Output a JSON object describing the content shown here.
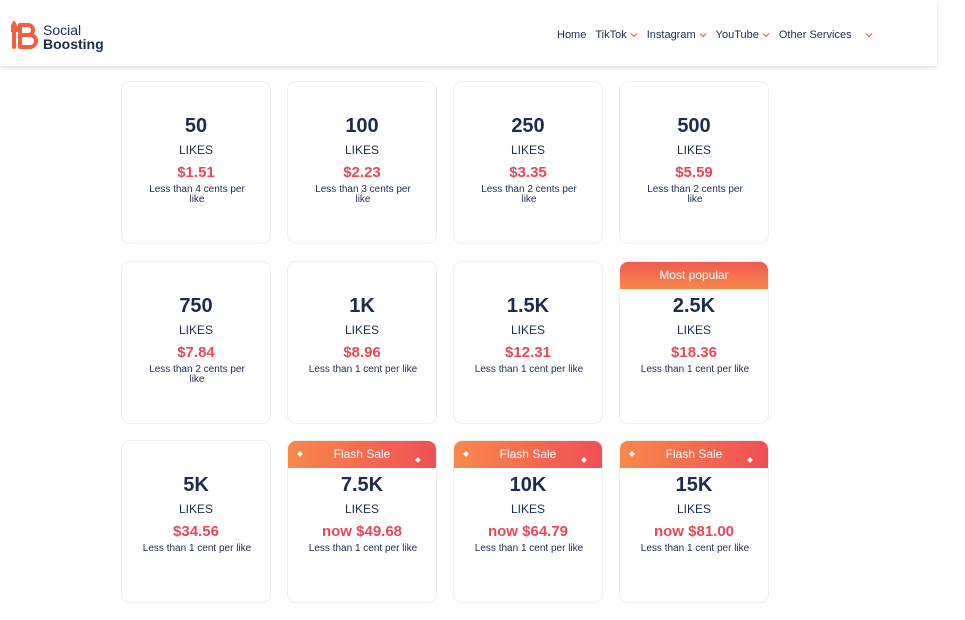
{
  "header": {
    "logo": {
      "line1": "Social",
      "line2": "Boosting"
    },
    "nav": [
      "Home",
      "TikTok",
      "Instagram",
      "YouTube",
      "Other Services"
    ]
  },
  "cards": [
    {
      "amount": "50",
      "unit": "LIKES",
      "price": "$1.51",
      "note": "Less than 4 cents per like"
    },
    {
      "amount": "100",
      "unit": "LIKES",
      "price": "$2.23",
      "note": "Less than 3 cents per like"
    },
    {
      "amount": "250",
      "unit": "LIKES",
      "price": "$3.35",
      "note": "Less than 2 cents per like"
    },
    {
      "amount": "500",
      "unit": "LIKES",
      "price": "$5.59",
      "note": "Less than 2 cents per like"
    },
    {
      "amount": "750",
      "unit": "LIKES",
      "price": "$7.84",
      "note": "Less than 2 cents per like"
    },
    {
      "amount": "1K",
      "unit": "LIKES",
      "price": "$8.96",
      "note": "Less than 1 cent per like"
    },
    {
      "amount": "1.5K",
      "unit": "LIKES",
      "price": "$12.31",
      "note": "Less than 1 cent per like"
    },
    {
      "badge": "Most popular",
      "amount": "2.5K",
      "unit": "LIKES",
      "price": "$18.36",
      "note": "Less than 1 cent per like"
    },
    {
      "amount": "5K",
      "unit": "LIKES",
      "price": "$34.56",
      "note": "Less than 1 cent per like"
    },
    {
      "badge": "Flash Sale",
      "amount": "7.5K",
      "unit": "LIKES",
      "price": "now $49.68",
      "note": "Less than 1 cent per like"
    },
    {
      "badge": "Flash Sale",
      "amount": "10K",
      "unit": "LIKES",
      "price": "now $64.79",
      "note": "Less than 1 cent per like"
    },
    {
      "badge": "Flash Sale",
      "amount": "15K",
      "unit": "LIKES",
      "price": "now $81.00",
      "note": "Less than 1 cent per like"
    }
  ]
}
